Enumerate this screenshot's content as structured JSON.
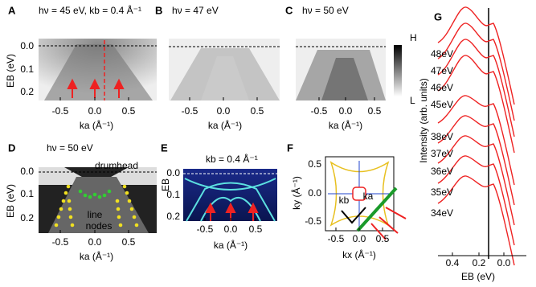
{
  "panels": {
    "A": {
      "label": "A",
      "title": "hν = 45 eV, kb = 0.4 Å⁻¹",
      "xticks": [
        "-0.5",
        "0.0",
        "0.5"
      ],
      "yticks": [
        "0.0",
        "0.1",
        "0.2"
      ],
      "xlabel": "ka (Å⁻¹)",
      "ylabel": "EB (eV)"
    },
    "B": {
      "label": "B",
      "title": "hν = 47 eV",
      "xticks": [
        "-0.5",
        "0.0",
        "0.5"
      ],
      "xlabel": "ka (Å⁻¹)"
    },
    "C": {
      "label": "C",
      "title": "hν = 50 eV",
      "xticks": [
        "-0.5",
        "0.0",
        "0.5"
      ],
      "xlabel": "ka (Å⁻¹)",
      "colorbar": [
        "H",
        "L"
      ]
    },
    "D": {
      "label": "D",
      "title": "hν = 50 eV",
      "xticks": [
        "-0.5",
        "0.0",
        "0.5"
      ],
      "yticks": [
        "0.0",
        "0.1",
        "0.2"
      ],
      "xlabel": "ka (Å⁻¹)",
      "ylabel": "EB (eV)",
      "annotations": [
        "drumhead",
        "line",
        "nodes"
      ]
    },
    "E": {
      "label": "E",
      "title": "kb = 0.4 Å⁻¹",
      "xticks": [
        "-0.5",
        "0.0",
        "0.5"
      ],
      "yticks": [
        "0.0",
        "0.1",
        "0.2"
      ],
      "xlabel": "ka (Å⁻¹)",
      "ylabel": "EB"
    },
    "F": {
      "label": "F",
      "xticks": [
        "-0.5",
        "0.0",
        "0.5"
      ],
      "yticks": [
        "0.5",
        "0.0",
        "-0.5"
      ],
      "xlabel": "kx (Å⁻¹)",
      "ylabel": "ky (Å⁻¹)",
      "annotations": [
        "kb",
        "ka"
      ]
    },
    "G": {
      "label": "G",
      "xticks": [
        "0.4",
        "0.2",
        "0.0"
      ],
      "xlabel": "EB (eV)",
      "ylabel": "Intensity (arb. units)",
      "curves": [
        "48eV",
        "47eV",
        "46eV",
        "45eV",
        "38eV",
        "37eV",
        "36eV",
        "35eV",
        "34eV"
      ]
    }
  }
}
